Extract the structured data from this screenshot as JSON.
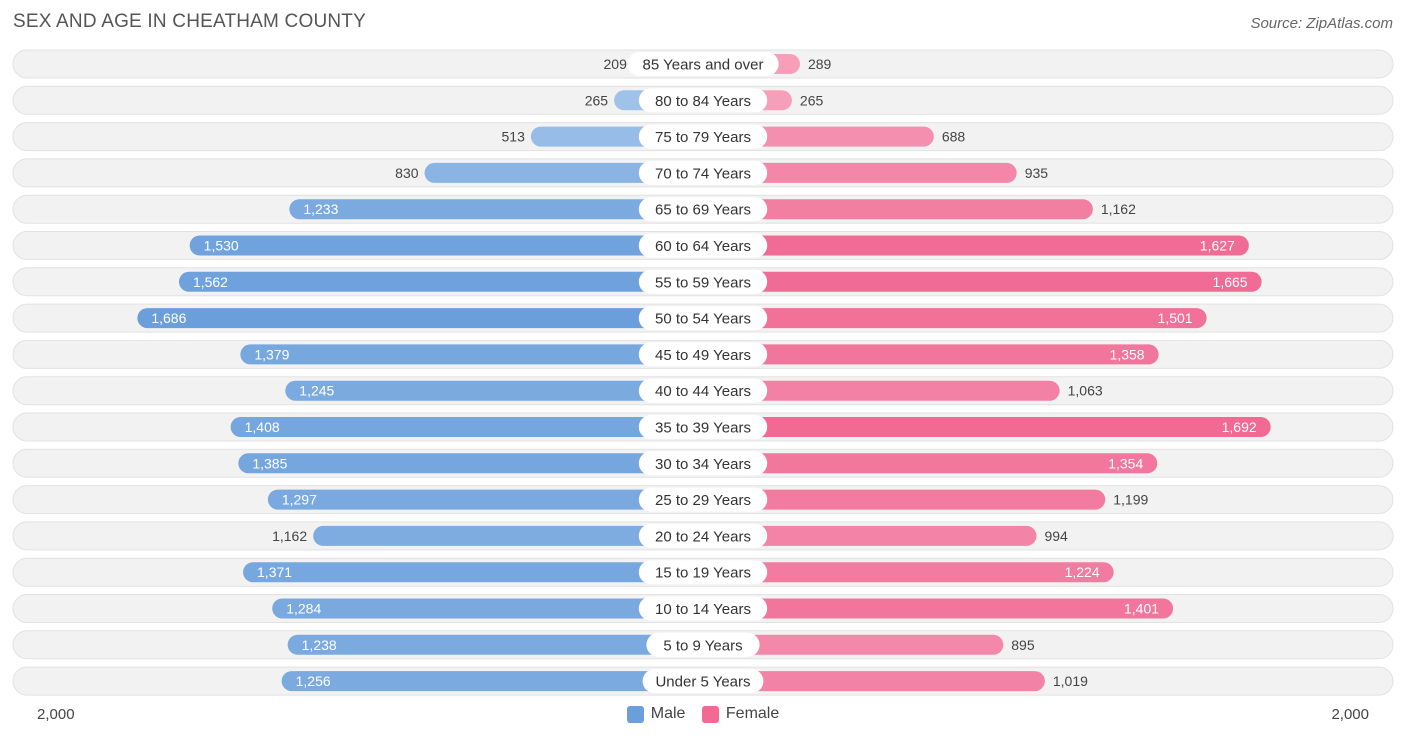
{
  "header": {
    "title": "SEX AND AGE IN CHEATHAM COUNTY",
    "source": "Source: ZipAtlas.com"
  },
  "colors": {
    "male": "#6a9fdb",
    "male_light": "#a9c8ec",
    "female": "#f06a94",
    "female_light": "#f7a9c2",
    "row_bg": "#f2f2f2"
  },
  "chart_data": {
    "type": "bar",
    "orientation": "horizontal-diverging",
    "title": "SEX AND AGE IN CHEATHAM COUNTY",
    "categories": [
      "85 Years and over",
      "80 to 84 Years",
      "75 to 79 Years",
      "70 to 74 Years",
      "65 to 69 Years",
      "60 to 64 Years",
      "55 to 59 Years",
      "50 to 54 Years",
      "45 to 49 Years",
      "40 to 44 Years",
      "35 to 39 Years",
      "30 to 34 Years",
      "25 to 29 Years",
      "20 to 24 Years",
      "15 to 19 Years",
      "10 to 14 Years",
      "5 to 9 Years",
      "Under 5 Years"
    ],
    "series": [
      {
        "name": "Male",
        "values": [
          209,
          265,
          513,
          830,
          1233,
          1530,
          1562,
          1686,
          1379,
          1245,
          1408,
          1385,
          1297,
          1162,
          1371,
          1284,
          1238,
          1256
        ]
      },
      {
        "name": "Female",
        "values": [
          289,
          265,
          688,
          935,
          1162,
          1627,
          1665,
          1501,
          1358,
          1063,
          1692,
          1354,
          1199,
          994,
          1224,
          1401,
          895,
          1019
        ]
      }
    ],
    "xlim": [
      0,
      2000
    ],
    "axis_labels": {
      "left": "2,000",
      "right": "2,000"
    },
    "legend_position": "bottom-center"
  }
}
